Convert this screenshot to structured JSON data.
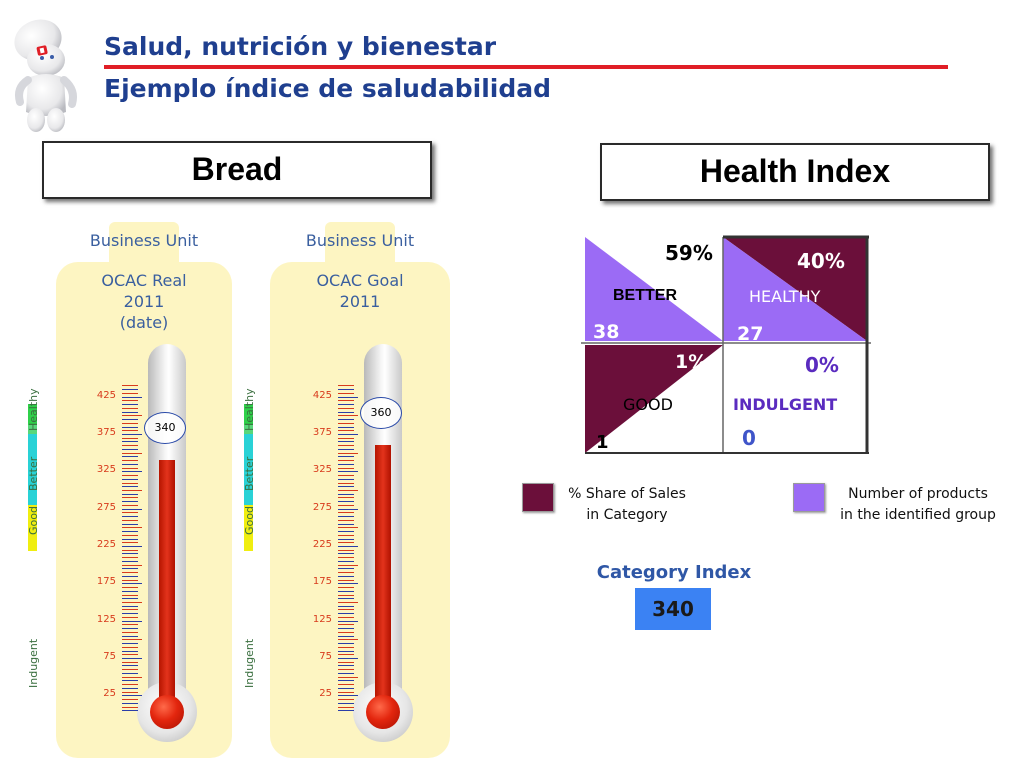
{
  "header": {
    "title_line1": "Salud, nutrición y bienestar",
    "title_line2": "Ejemplo índice de saludabilidad"
  },
  "sections": {
    "left_title": "Bread",
    "right_title": "Health Index"
  },
  "thermometers": [
    {
      "business_unit_label": "Business Unit",
      "ocac_label": "OCAC Real\n2011\n(date)",
      "value": "340",
      "value_num": 340
    },
    {
      "business_unit_label": "Business Unit",
      "ocac_label": "OCAC Goal\n2011",
      "value": "360",
      "value_num": 360
    }
  ],
  "scale": {
    "min": 0,
    "max": 450,
    "ticks": [
      "425",
      "375",
      "325",
      "275",
      "225",
      "175",
      "125",
      "75",
      "25"
    ],
    "tick_values": [
      425,
      375,
      325,
      275,
      225,
      175,
      125,
      75,
      25
    ]
  },
  "zones": [
    {
      "label": "Healthy",
      "color": "#2fd14a"
    },
    {
      "label": "Better",
      "color": "#29d2d6"
    },
    {
      "label": "Good",
      "color": "#f0ee10"
    },
    {
      "label": "Indugent",
      "color": "#ffffff"
    }
  ],
  "matrix": {
    "better": {
      "pct": "59%",
      "label": "BETTER",
      "count": "38"
    },
    "healthy": {
      "pct": "40%",
      "label": "HEALTHY",
      "count": "27"
    },
    "good": {
      "pct": "1%",
      "label": "GOOD",
      "count": "1"
    },
    "indulgent": {
      "pct": "0%",
      "label": "INDULGENT",
      "count": "0"
    }
  },
  "legend": {
    "share_label": "% Share of Sales\nin Category",
    "share_color": "#6b0f3a",
    "count_label": "Number of products\nin the identified group",
    "count_color": "#9b6bf5"
  },
  "category_index": {
    "label": "Category Index",
    "value": "340"
  },
  "colors": {
    "title": "#1f3f8f",
    "rule": "#e01e26",
    "maroon": "#6b0f3a",
    "purple": "#9b6bf5",
    "index_box": "#3b82f3"
  }
}
